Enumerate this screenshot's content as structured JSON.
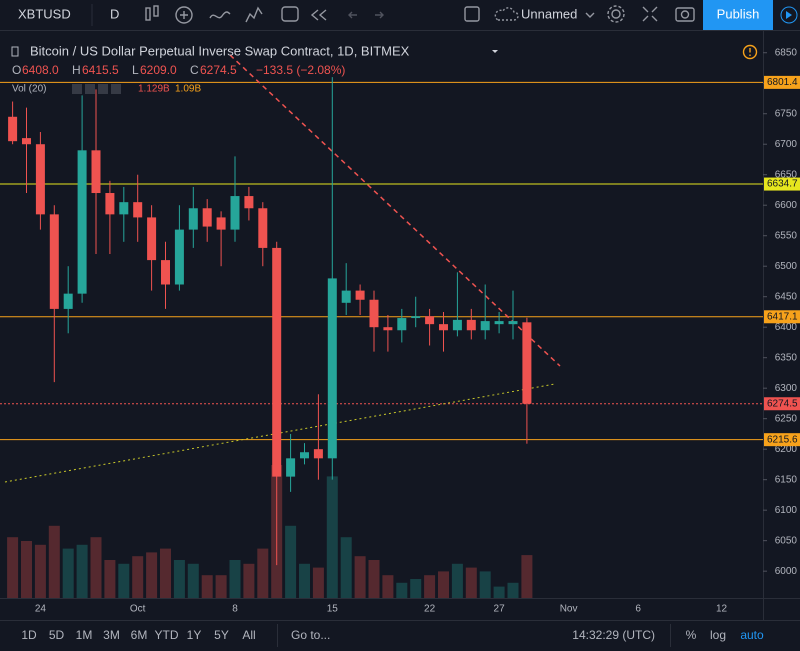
{
  "toolbar": {
    "symbol": "XBTUSD",
    "interval": "D",
    "layout_name": "Unnamed",
    "publish": "Publish"
  },
  "chart_data": {
    "type": "candlestick",
    "title": "Bitcoin / US Dollar Perpetual Inverse Swap Contract, 1D, BITMEX",
    "ohlc_legend": [
      "O",
      "6408.0",
      "H",
      "6415.5",
      "L",
      "6209.0",
      "C",
      "6274.5",
      "−133.5 (−2.08%)"
    ],
    "volume_legend": [
      "Vol (20)",
      "1.129B",
      "1.09B"
    ],
    "categories": [
      null,
      null,
      "24",
      null,
      null,
      null,
      null,
      null,
      null,
      "Oct",
      null,
      null,
      null,
      null,
      null,
      null,
      "8",
      null,
      null,
      null,
      null,
      null,
      null,
      "15",
      null,
      null,
      null,
      null,
      null,
      null,
      "22",
      null,
      null,
      null,
      null,
      "27",
      null,
      null,
      null,
      null,
      "Nov",
      null,
      null,
      null,
      null,
      "6",
      null,
      null,
      null,
      null,
      null,
      "12",
      null,
      null
    ],
    "open": [
      6745,
      6710,
      6700,
      6585,
      6430,
      6455,
      6690,
      6620,
      6585,
      6605,
      6580,
      6510,
      6470,
      6560,
      6595,
      6580,
      6560,
      6615,
      6595,
      6530,
      6155,
      6185,
      6200,
      6185,
      6440,
      6460,
      6445,
      6400,
      6395,
      6415,
      6418,
      6405,
      6395,
      6412,
      6395,
      6405,
      6405,
      6408.0,
      null,
      null,
      null,
      null,
      null,
      null,
      null,
      null,
      null,
      null,
      null,
      null,
      null,
      null,
      null,
      null
    ],
    "high": [
      6770,
      6760,
      6720,
      6600,
      6500,
      6780,
      6790,
      6640,
      6630,
      6650,
      6600,
      6540,
      6600,
      6630,
      6610,
      6590,
      6680,
      6630,
      6605,
      6540,
      6225,
      6210,
      6290,
      6810,
      6505,
      6470,
      6460,
      6420,
      6430,
      6450,
      6430,
      6425,
      6490,
      6430,
      6470,
      6425,
      6460,
      6415.5,
      null,
      null,
      null,
      null,
      null,
      null,
      null,
      null,
      null,
      null,
      null,
      null,
      null,
      null,
      null,
      null
    ],
    "low": [
      6700,
      6620,
      6560,
      6310,
      6390,
      6440,
      6520,
      6520,
      6540,
      6540,
      6460,
      6430,
      6460,
      6530,
      6540,
      6500,
      6540,
      6575,
      6500,
      6010,
      6130,
      6175,
      6150,
      6150,
      6420,
      6420,
      6360,
      6360,
      6375,
      6400,
      6370,
      6360,
      6385,
      6380,
      6380,
      6390,
      6380,
      6209.0,
      null,
      null,
      null,
      null,
      null,
      null,
      null,
      null,
      null,
      null,
      null,
      null,
      null,
      null,
      null,
      null
    ],
    "close": [
      6705,
      6700,
      6585,
      6430,
      6455,
      6690,
      6620,
      6585,
      6605,
      6580,
      6510,
      6470,
      6560,
      6595,
      6565,
      6560,
      6615,
      6595,
      6530,
      6155,
      6185,
      6195,
      6185,
      6480,
      6460,
      6445,
      6400,
      6395,
      6415,
      6418,
      6405,
      6395,
      6412,
      6395,
      6410,
      6410,
      6410,
      6274.5,
      null,
      null,
      null,
      null,
      null,
      null,
      null,
      null,
      null,
      null,
      null,
      null,
      null,
      null,
      null,
      null
    ],
    "volume": [
      1.6,
      1.5,
      1.4,
      1.9,
      1.3,
      1.4,
      1.6,
      1.0,
      0.9,
      1.1,
      1.2,
      1.3,
      1.0,
      0.9,
      0.6,
      0.6,
      1.0,
      0.9,
      1.3,
      3.5,
      1.9,
      0.9,
      0.8,
      3.2,
      1.6,
      1.1,
      1.0,
      0.6,
      0.4,
      0.5,
      0.6,
      0.7,
      0.9,
      0.8,
      0.7,
      0.3,
      0.4,
      1.129,
      null,
      null,
      null,
      null,
      null,
      null,
      null,
      null,
      null,
      null,
      null,
      null,
      null,
      null,
      null,
      null
    ],
    "up_color": "#26a69a",
    "down_color": "#ef5350",
    "ylim": [
      5956,
      6884
    ],
    "yticks": [
      6000,
      6050,
      6100,
      6150,
      6200,
      6250,
      6300,
      6350,
      6400,
      6450,
      6500,
      6550,
      6600,
      6650,
      6700,
      6750,
      6800,
      6850
    ],
    "price_lines": [
      {
        "value": 6801.4,
        "color": "#f7a21b",
        "style": "solid"
      },
      {
        "value": 6634.7,
        "color": "#e6e61e",
        "style": "solid"
      },
      {
        "value": 6417.1,
        "color": "#f7a21b",
        "style": "solid"
      },
      {
        "value": 6274.5,
        "color": "#ef5350",
        "style": "dotted"
      },
      {
        "value": 6215.6,
        "color": "#f7a21b",
        "style": "solid"
      }
    ]
  },
  "bottom_bar": {
    "ranges": [
      "1D",
      "5D",
      "1M",
      "3M",
      "6M",
      "YTD",
      "1Y",
      "5Y",
      "All"
    ],
    "goto": "Go to...",
    "clock": "14:32:29 (UTC)",
    "percent": "%",
    "log": "log",
    "auto": "auto"
  }
}
